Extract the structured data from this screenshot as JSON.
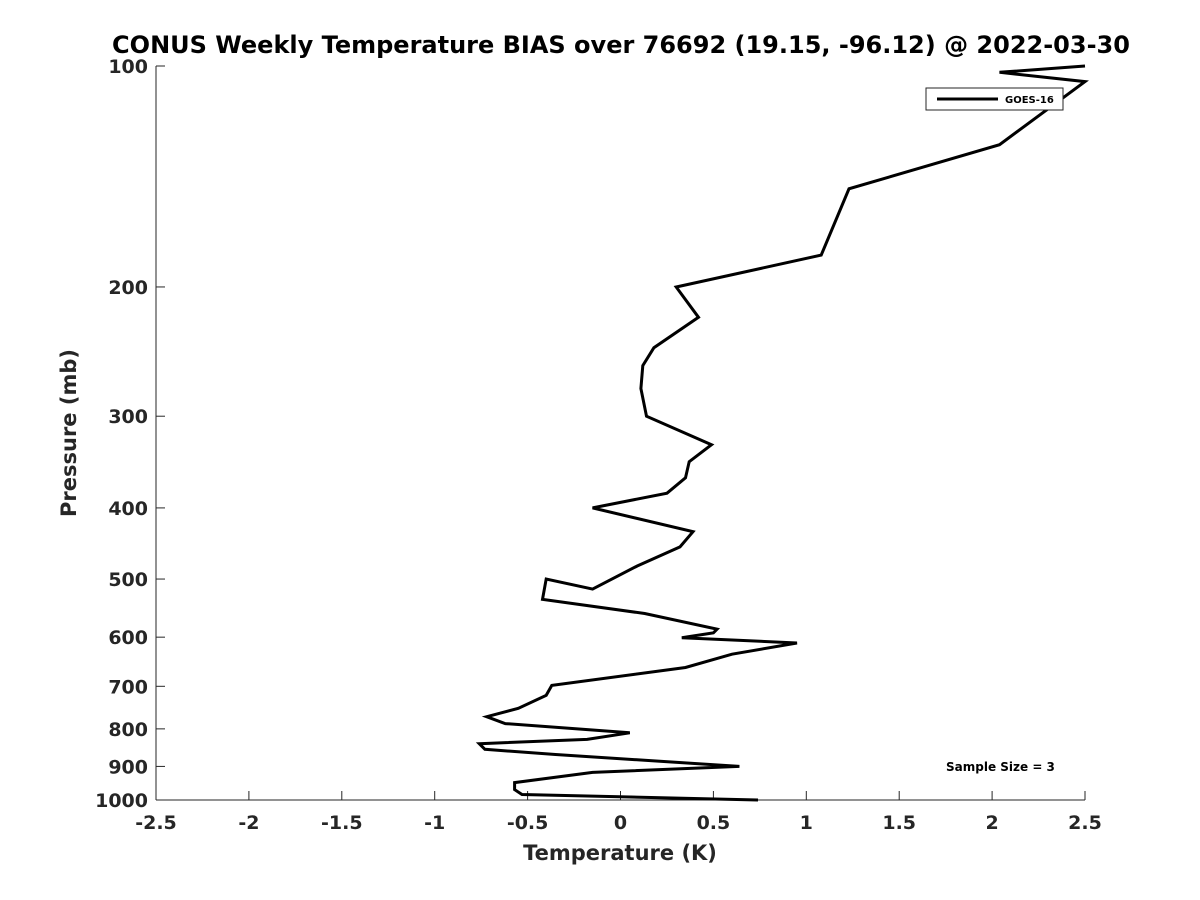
{
  "chart_data": {
    "type": "line",
    "title": "CONUS Weekly Temperature BIAS over 76692 (19.15, -96.12) @ 2022-03-30",
    "xlabel": "Temperature (K)",
    "ylabel": "Pressure (mb)",
    "xlim": [
      -2.5,
      2.5
    ],
    "ylim": [
      1000,
      100
    ],
    "y_scale": "log",
    "y_reversed": true,
    "grid": false,
    "x_ticks": [
      "-2.5",
      "-2",
      "-1.5",
      "-1",
      "-0.5",
      "0",
      "0.5",
      "1",
      "1.5",
      "2",
      "2.5"
    ],
    "y_ticks": [
      "100",
      "200",
      "300",
      "400",
      "500",
      "600",
      "700",
      "800",
      "900",
      "1000"
    ],
    "legend_position": "top-right",
    "annotation": "Sample Size = 3",
    "series": [
      {
        "name": "GOES-16",
        "color": "#000000",
        "x": [
          2.5,
          2.04,
          2.5,
          2.04,
          1.23,
          1.08,
          0.3,
          0.42,
          0.18,
          0.12,
          0.11,
          0.14,
          0.49,
          0.37,
          0.35,
          0.25,
          -0.15,
          0.39,
          0.32,
          0.09,
          -0.15,
          -0.4,
          -0.42,
          0.13,
          0.52,
          0.5,
          0.33,
          0.95,
          0.6,
          0.35,
          -0.37,
          -0.4,
          -0.55,
          -0.72,
          -0.62,
          0.05,
          -0.18,
          -0.76,
          -0.73,
          -0.35,
          0.64,
          -0.15,
          -0.57,
          -0.57,
          -0.53,
          0.74
        ],
        "y": [
          100,
          102,
          105,
          128,
          147,
          181,
          200,
          220,
          242,
          256,
          275,
          300,
          328,
          346,
          364,
          382,
          400,
          431,
          452,
          480,
          516,
          500,
          533,
          557,
          585,
          592,
          601,
          611,
          633,
          660,
          698,
          720,
          750,
          770,
          787,
          810,
          827,
          838,
          853,
          867,
          900,
          917,
          947,
          968,
          983,
          1000
        ]
      }
    ]
  }
}
